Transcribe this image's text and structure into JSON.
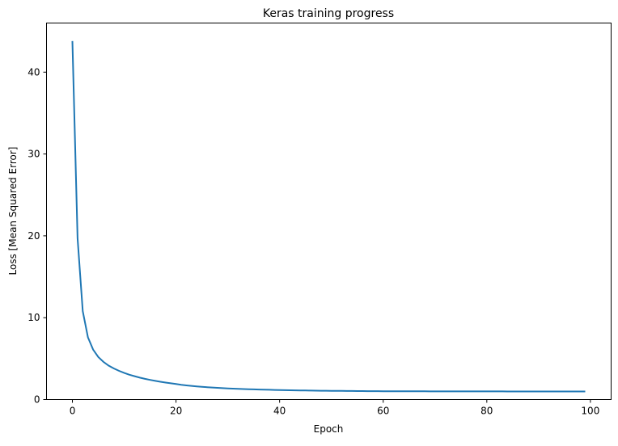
{
  "chart_data": {
    "type": "line",
    "title": "Keras training progress",
    "xlabel": "Epoch",
    "ylabel": "Loss [Mean Squared Error]",
    "xlim": [
      -5,
      104
    ],
    "ylim": [
      0,
      46
    ],
    "xticks": [
      0,
      20,
      40,
      60,
      80,
      100
    ],
    "yticks": [
      0,
      10,
      20,
      30,
      40
    ],
    "grid": false,
    "color": "#1f77b4",
    "x_start": 0,
    "values": [
      43.8,
      19.7,
      10.8,
      7.6,
      6.1,
      5.2,
      4.6,
      4.15,
      3.8,
      3.5,
      3.25,
      3.03,
      2.85,
      2.68,
      2.53,
      2.4,
      2.28,
      2.17,
      2.07,
      1.98,
      1.9,
      1.8,
      1.73,
      1.67,
      1.61,
      1.56,
      1.51,
      1.47,
      1.43,
      1.39,
      1.36,
      1.33,
      1.3,
      1.28,
      1.26,
      1.24,
      1.22,
      1.2,
      1.19,
      1.17,
      1.16,
      1.15,
      1.14,
      1.13,
      1.12,
      1.11,
      1.1,
      1.09,
      1.08,
      1.08,
      1.07,
      1.06,
      1.06,
      1.05,
      1.05,
      1.04,
      1.04,
      1.03,
      1.03,
      1.03,
      1.02,
      1.02,
      1.02,
      1.02,
      1.01,
      1.01,
      1.01,
      1.01,
      1.01,
      1.0,
      1.0,
      1.0,
      1.0,
      1.0,
      1.0,
      1.0,
      1.0,
      1.0,
      1.0,
      1.0,
      1.0,
      1.0,
      1.0,
      1.0,
      0.99,
      0.99,
      0.99,
      0.99,
      0.99,
      0.99,
      0.99,
      0.99,
      0.99,
      0.99,
      0.99,
      0.99,
      0.99,
      0.99,
      0.99,
      0.99
    ]
  }
}
